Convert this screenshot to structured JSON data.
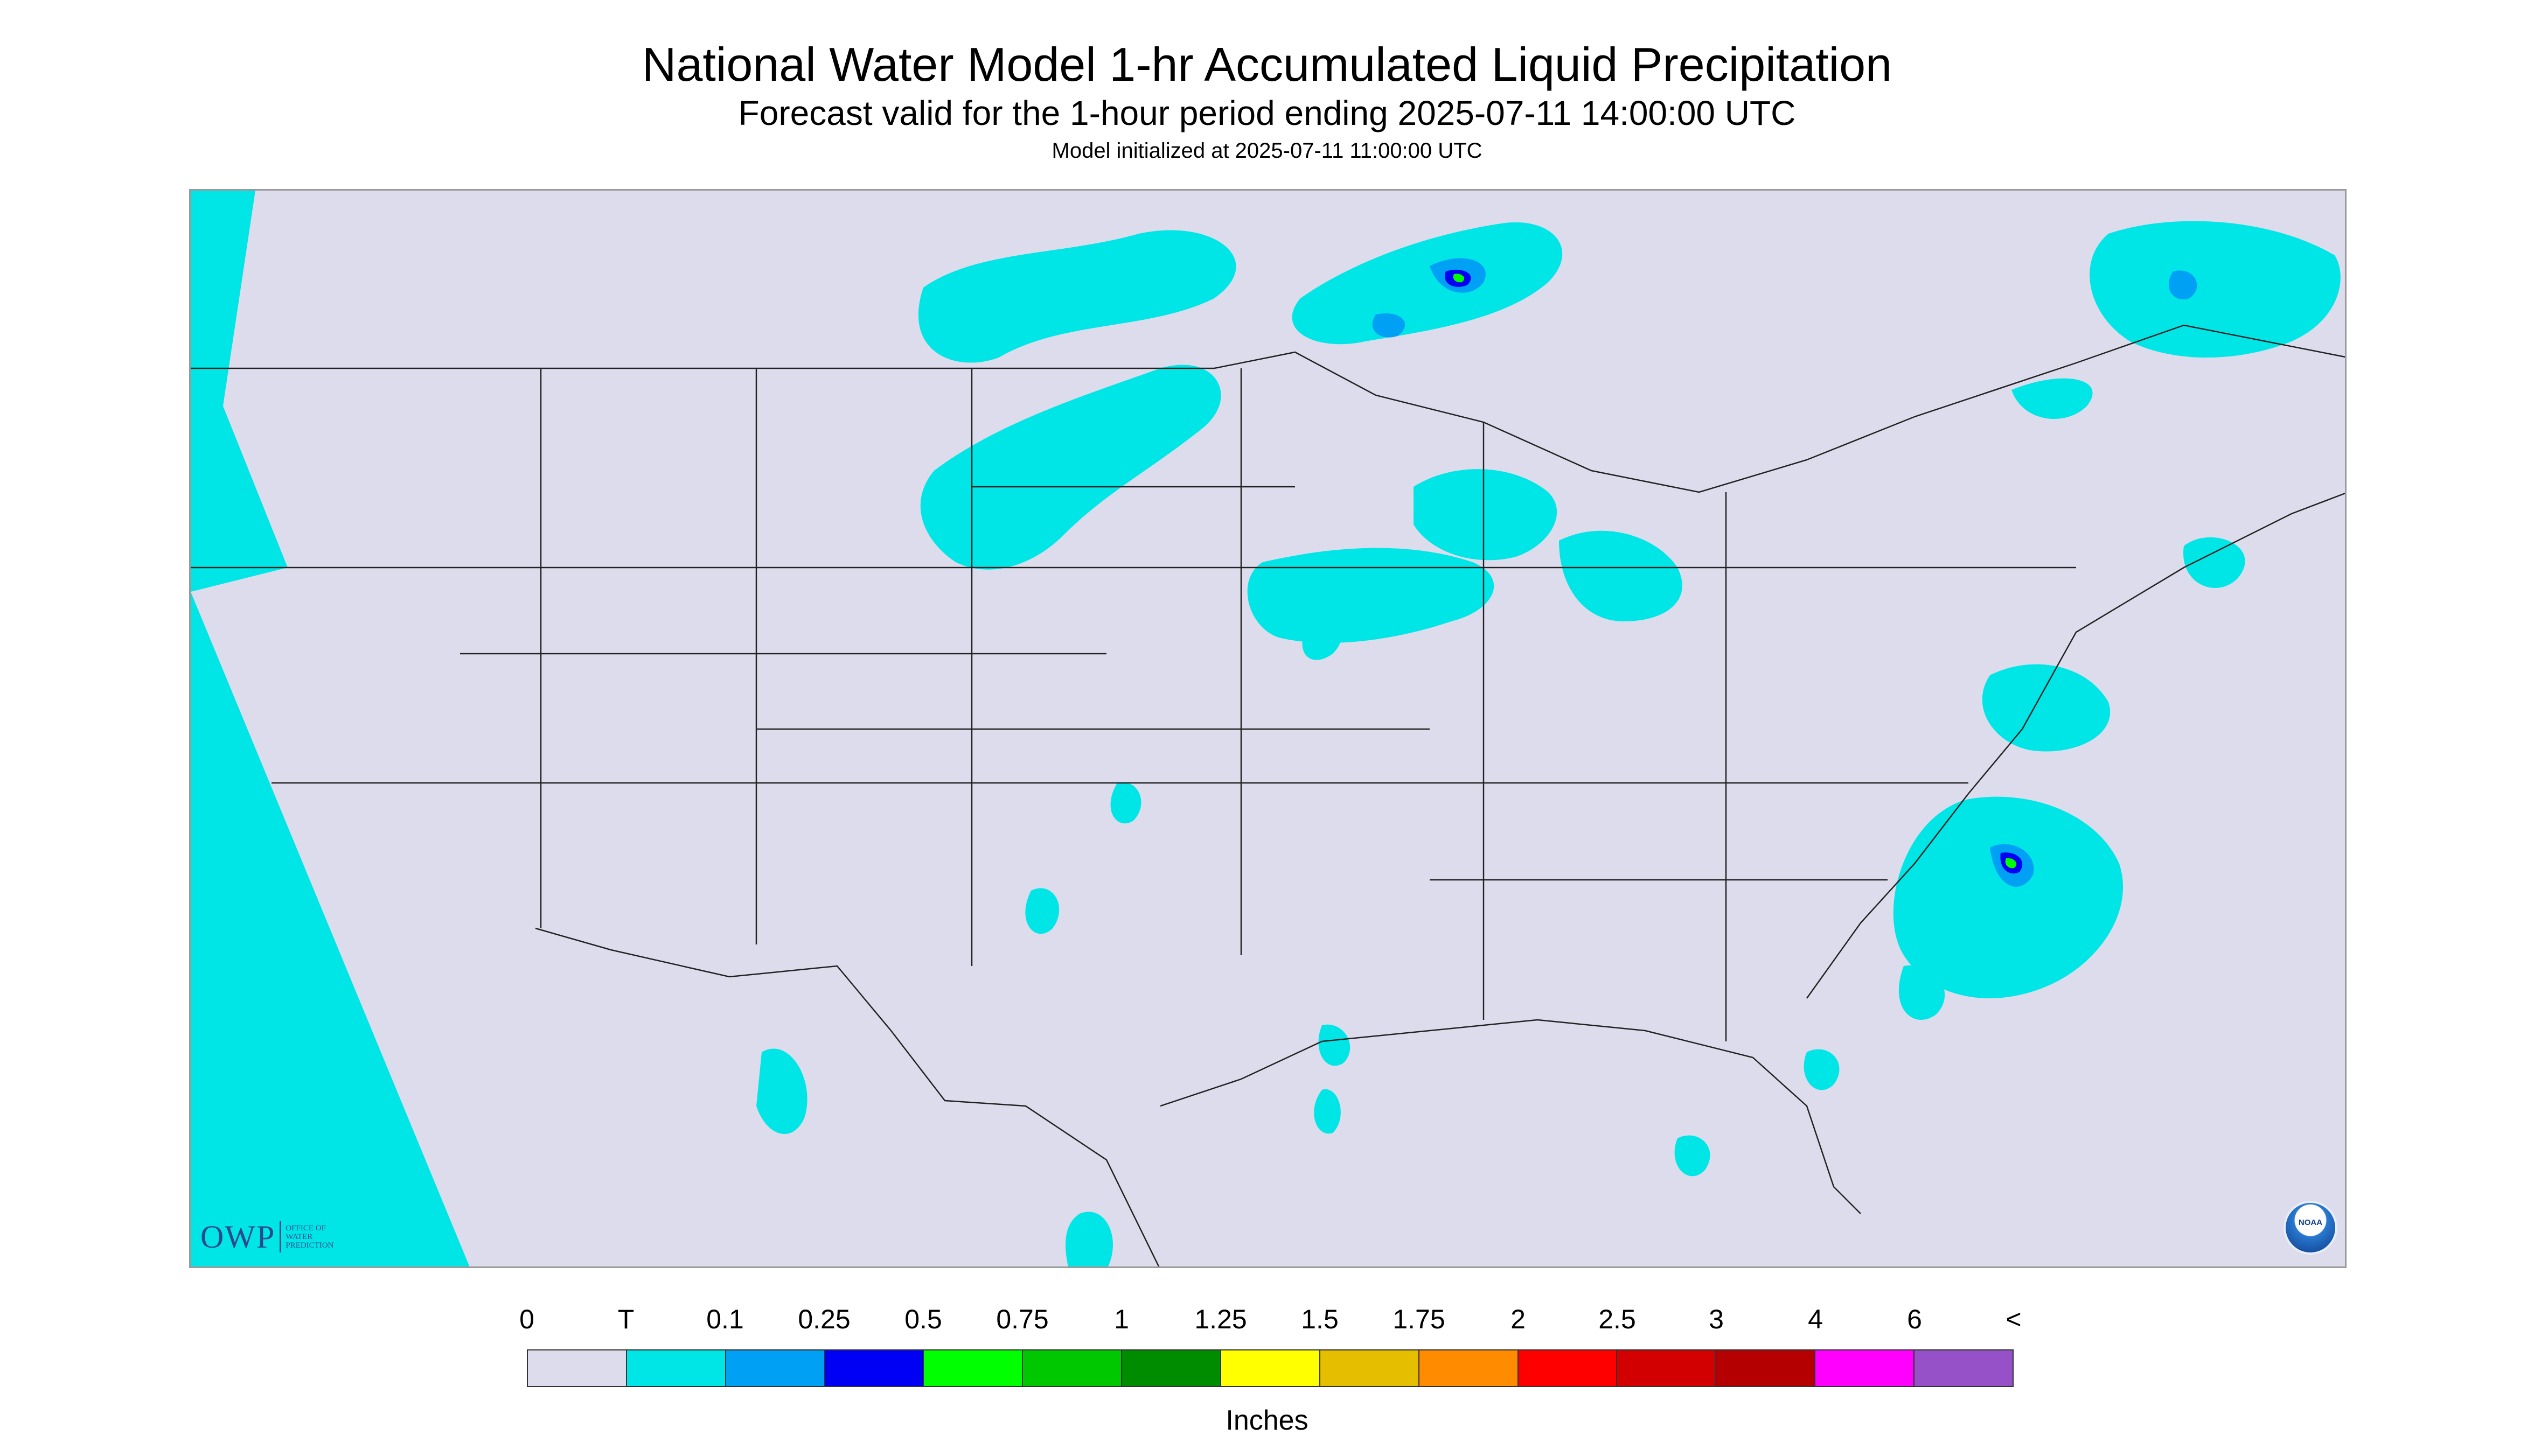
{
  "title": "National Water Model 1-hr Accumulated Liquid Precipitation",
  "subtitle": "Forecast valid for the 1-hour period ending 2025-07-11 14:00:00 UTC",
  "init_line": "Model initialized at 2025-07-11 11:00:00 UTC",
  "logos": {
    "owp_mark": "OWP",
    "owp_text": [
      "OFFICE OF",
      "WATER",
      "PREDICTION"
    ],
    "noaa_mark": "NOAA"
  },
  "colors": {
    "background_no_precip": "#dcdcec",
    "trace": "#00e6e6",
    "boundaries": "#222222",
    "frame": "#9a9a9a"
  },
  "legend": {
    "units": "Inches",
    "ticks": [
      "0",
      "T",
      "0.1",
      "0.25",
      "0.5",
      "0.75",
      "1",
      "1.25",
      "1.5",
      "1.75",
      "2",
      "2.5",
      "3",
      "4",
      "6",
      "<"
    ],
    "bins": [
      {
        "range": "0–T",
        "color": "#dcdcec"
      },
      {
        "range": "T–0.1",
        "color": "#00e6e6"
      },
      {
        "range": "0.1–0.25",
        "color": "#00a0f5"
      },
      {
        "range": "0.25–0.5",
        "color": "#0000f5"
      },
      {
        "range": "0.5–0.75",
        "color": "#00ff00"
      },
      {
        "range": "0.75–1",
        "color": "#00c800"
      },
      {
        "range": "1–1.25",
        "color": "#008c00"
      },
      {
        "range": "1.25–1.5",
        "color": "#ffff00"
      },
      {
        "range": "1.5–1.75",
        "color": "#e6be00"
      },
      {
        "range": "1.75–2",
        "color": "#ff8c00"
      },
      {
        "range": "2–2.5",
        "color": "#ff0000"
      },
      {
        "range": "2.5–3",
        "color": "#d20000"
      },
      {
        "range": "3–4",
        "color": "#b40000"
      },
      {
        "range": "4–6",
        "color": "#ff00ff"
      },
      {
        "range": "6+",
        "color": "#9650c8"
      }
    ]
  }
}
